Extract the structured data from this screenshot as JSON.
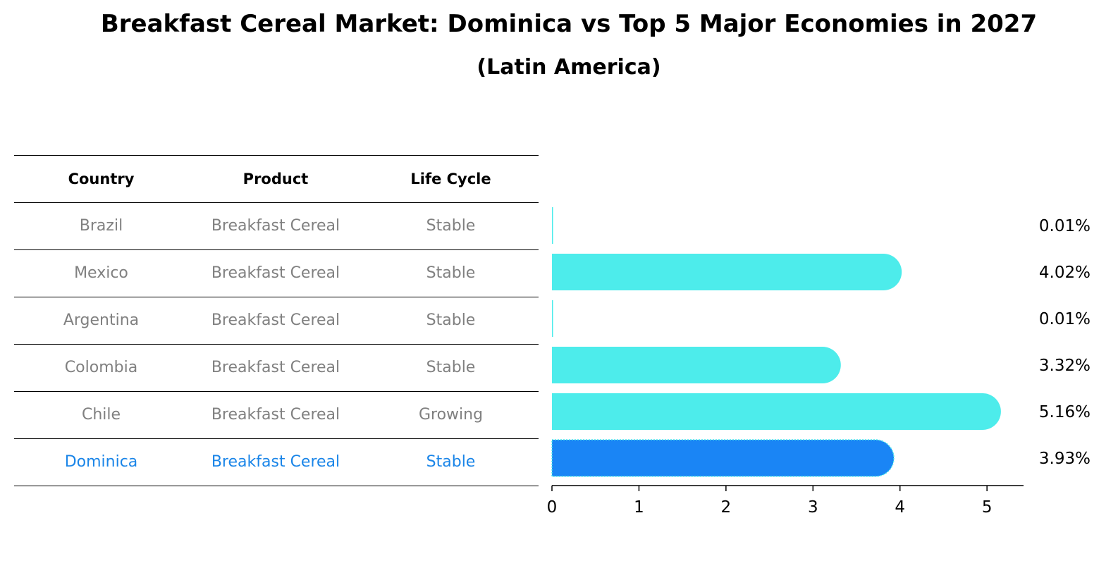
{
  "title": "Breakfast Cereal Market: Dominica vs Top 5 Major Economies in 2027",
  "subtitle": "(Latin America)",
  "table": {
    "headers": [
      "Country",
      "Product",
      "Life Cycle"
    ],
    "rows": [
      {
        "country": "Brazil",
        "product": "Breakfast Cereal",
        "life_cycle": "Stable"
      },
      {
        "country": "Mexico",
        "product": "Breakfast Cereal",
        "life_cycle": "Stable"
      },
      {
        "country": "Argentina",
        "product": "Breakfast Cereal",
        "life_cycle": "Stable"
      },
      {
        "country": "Colombia",
        "product": "Breakfast Cereal",
        "life_cycle": "Stable"
      },
      {
        "country": "Chile",
        "product": "Breakfast Cereal",
        "life_cycle": "Growing"
      },
      {
        "country": "Dominica",
        "product": "Breakfast Cereal",
        "life_cycle": "Stable"
      }
    ]
  },
  "chart_data": {
    "type": "bar",
    "orientation": "horizontal",
    "categories": [
      "Brazil",
      "Mexico",
      "Argentina",
      "Colombia",
      "Chile",
      "Dominica"
    ],
    "values": [
      0.01,
      4.02,
      0.01,
      3.32,
      5.16,
      3.93
    ],
    "value_labels": [
      "0.01%",
      "4.02%",
      "0.01%",
      "3.32%",
      "5.16%",
      "3.93%"
    ],
    "highlight": "Dominica",
    "xlim": [
      0,
      5.42
    ],
    "xticks": [
      0,
      1,
      2,
      3,
      4,
      5
    ],
    "colors": {
      "default": "#4deceb",
      "highlight": "#1a85f5",
      "table_text": "#808080",
      "table_highlight": "#1a85e8"
    }
  }
}
